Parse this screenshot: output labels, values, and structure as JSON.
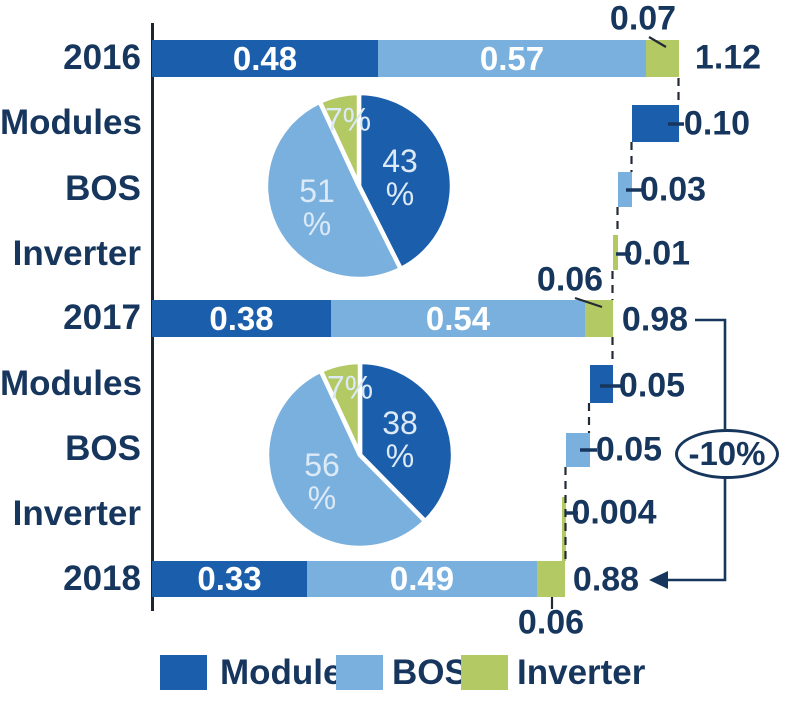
{
  "chart_data": {
    "type": "bar",
    "subtype": "horizontal stacked bars with waterfall cost reductions and share pies",
    "orientation": "horizontal",
    "xlim": [
      0,
      1.2
    ],
    "grid": false,
    "legend_position": "bottom",
    "series": [
      "Module",
      "BOS",
      "Inverter"
    ],
    "categories": [
      "2016",
      "Modules",
      "BOS",
      "Inverter",
      "2017",
      "Modules",
      "BOS",
      "Inverter",
      "2018"
    ],
    "years": [
      {
        "year": "2016",
        "values": [
          0.48,
          0.57,
          0.07
        ],
        "total": 1.12
      },
      {
        "year": "2017",
        "values": [
          0.38,
          0.54,
          0.06
        ],
        "total": 0.98
      },
      {
        "year": "2018",
        "values": [
          0.33,
          0.49,
          0.06
        ],
        "total": 0.88
      }
    ],
    "reductions": [
      {
        "from": "2016",
        "to": "2017",
        "steps": [
          "Modules",
          "BOS",
          "Inverter"
        ],
        "values": [
          0.1,
          0.03,
          0.01
        ]
      },
      {
        "from": "2017",
        "to": "2018",
        "steps": [
          "Modules",
          "BOS",
          "Inverter"
        ],
        "values": [
          0.05,
          0.05,
          0.004
        ]
      }
    ],
    "pies": [
      {
        "year": "2016",
        "shares_pct": [
          43,
          51,
          7
        ]
      },
      {
        "year": "2017",
        "shares_pct": [
          38,
          56,
          7
        ]
      }
    ],
    "annotation": {
      "text": "-10%",
      "from_total": 0.98,
      "to_total": 0.88
    },
    "colors": {
      "module": "#1b5eab",
      "bos": "#7ab0de",
      "inverter": "#b3c964",
      "text": "#17365d"
    }
  },
  "labels": {
    "rows": [
      "2016",
      "Modules",
      "BOS",
      "Inverter",
      "2017",
      "Modules",
      "BOS",
      "Inverter",
      "2018"
    ],
    "bar2016": {
      "module": "0.48",
      "bos": "0.57",
      "inverter": "0.07",
      "total": "1.12"
    },
    "bar2017": {
      "module": "0.38",
      "bos": "0.54",
      "inverter": "0.06",
      "total": "0.98"
    },
    "bar2018": {
      "module": "0.33",
      "bos": "0.49",
      "inverter": "0.06",
      "total": "0.88"
    },
    "delta2016": {
      "module": "0.10",
      "bos": "0.03",
      "inverter": "0.01"
    },
    "delta2017": {
      "module": "0.05",
      "bos": "0.05",
      "inverter": "0.004"
    },
    "pie2016": {
      "module": "43\n%",
      "bos": "51\n%",
      "inverter": "7%"
    },
    "pie2017": {
      "module": "38\n%",
      "bos": "56\n%",
      "inverter": "7%"
    },
    "annotation": "-10%",
    "legend": {
      "module": "Module",
      "bos": "BOS",
      "inverter": "Inverter"
    }
  }
}
